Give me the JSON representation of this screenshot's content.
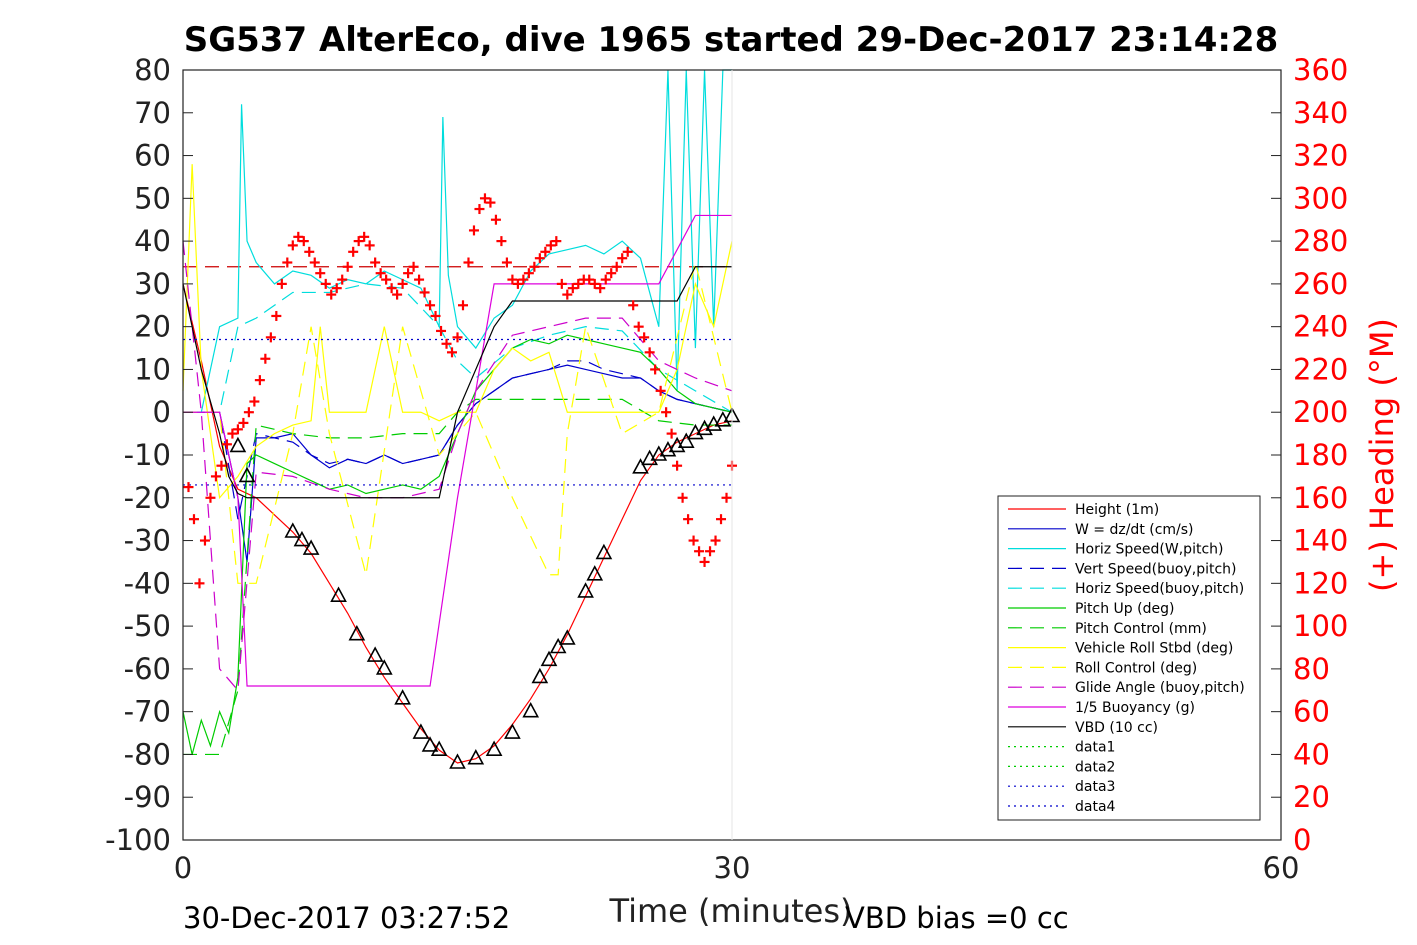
{
  "chart_data": {
    "type": "line",
    "title": "SG537 AlterEco, dive 1965 started 29-Dec-2017 23:14:28",
    "xlabel": "Time (minutes)",
    "ylabel": "",
    "y2label": "(+) Heading (°M)",
    "xlim": [
      0,
      60
    ],
    "ylim": [
      -100,
      80
    ],
    "y2lim": [
      0,
      360
    ],
    "x_ticks": [
      "0",
      "30",
      "60"
    ],
    "y_ticks": [
      "80",
      "70",
      "60",
      "50",
      "40",
      "30",
      "20",
      "10",
      "0",
      "-10",
      "-20",
      "-30",
      "-40",
      "-50",
      "-60",
      "-70",
      "-80",
      "-90",
      "-100"
    ],
    "y2_ticks": [
      "360",
      "340",
      "320",
      "300",
      "280",
      "260",
      "240",
      "220",
      "200",
      "180",
      "160",
      "140",
      "120",
      "100",
      "80",
      "60",
      "40",
      "20",
      "0"
    ],
    "grid": false,
    "legend_position": "bottom-right",
    "footer_left": "30-Dec-2017 03:27:52",
    "footer_right": "VBD bias =0 cc",
    "series": [
      {
        "name": "Height (1m)",
        "color": "#ff0000",
        "style": "solid",
        "x": [
          0,
          1,
          2,
          3,
          4,
          5,
          6,
          7,
          8,
          9,
          10,
          11,
          12,
          13,
          14,
          15,
          16,
          17,
          18,
          19,
          20,
          21,
          22,
          23,
          24,
          25,
          26,
          27,
          28,
          29,
          30
        ],
        "y": [
          30,
          12,
          -8,
          -18,
          -20,
          -24,
          -28,
          -33,
          -40,
          -47,
          -55,
          -62,
          -68,
          -74,
          -79,
          -82,
          -81,
          -78,
          -73,
          -67,
          -60,
          -52,
          -43,
          -34,
          -25,
          -16,
          -10,
          -7,
          -5,
          -3,
          -2
        ]
      },
      {
        "name": "W = dz/dt (cm/s)",
        "color": "#0000cc",
        "style": "solid",
        "x": [
          0,
          2,
          3,
          3.5,
          4,
          5,
          6,
          7,
          8,
          9,
          10,
          11,
          12,
          13,
          14,
          15,
          16,
          17,
          18,
          19,
          20,
          21,
          22,
          23,
          24,
          25,
          26,
          27,
          28,
          29,
          30
        ],
        "y": [
          0,
          0,
          -20,
          -35,
          -6,
          -6,
          -5,
          -10,
          -13,
          -11,
          -12,
          -10,
          -12,
          -11,
          -10,
          -3,
          2,
          5,
          8,
          9,
          10,
          11,
          10,
          9,
          8,
          8,
          5,
          3,
          2,
          1,
          0
        ]
      },
      {
        "name": "Horiz Speed(W,pitch)",
        "color": "#00dddd",
        "style": "solid",
        "x": [
          0,
          1,
          2,
          3,
          3.2,
          3.5,
          4,
          5,
          6,
          7,
          8,
          9,
          10,
          11,
          12,
          13,
          14,
          14.2,
          14.5,
          15,
          16,
          17,
          18,
          19,
          20,
          21,
          22,
          23,
          24,
          25,
          26,
          26.5,
          27,
          27.5,
          28,
          28.5,
          29,
          29.5,
          30
        ],
        "y": [
          0,
          0,
          20,
          22,
          72,
          40,
          35,
          30,
          33,
          32,
          29,
          31,
          30,
          33,
          31,
          29,
          20,
          69,
          32,
          20,
          15,
          22,
          25,
          33,
          37,
          38,
          39,
          37,
          40,
          36,
          20,
          80,
          5,
          80,
          15,
          80,
          20,
          80,
          80
        ]
      },
      {
        "name": "Vert Speed(buoy,pitch)",
        "color": "#0000cc",
        "style": "dashed",
        "x": [
          0,
          2,
          3,
          4,
          5,
          6,
          7,
          8,
          9,
          10,
          11,
          12,
          13,
          14,
          15,
          16,
          17,
          18,
          19,
          20,
          21,
          22,
          23,
          24,
          25,
          26,
          27,
          28,
          29,
          30
        ],
        "y": [
          0,
          0,
          -25,
          -5,
          -6,
          -7,
          -10,
          -12,
          -11,
          -12,
          -10,
          -12,
          -11,
          -10,
          -3,
          2,
          5,
          8,
          9,
          10,
          12,
          12,
          10,
          9,
          8,
          5,
          3,
          2,
          1,
          0
        ]
      },
      {
        "name": "Horiz Speed(buoy,pitch)",
        "color": "#00dddd",
        "style": "dashed",
        "x": [
          0,
          2,
          3,
          4,
          6,
          8,
          10,
          12,
          14,
          15,
          16,
          18,
          20,
          22,
          24,
          26,
          28,
          30
        ],
        "y": [
          0,
          0,
          20,
          22,
          28,
          28,
          30,
          29,
          20,
          12,
          8,
          15,
          18,
          20,
          19,
          10,
          5,
          0
        ]
      },
      {
        "name": "Pitch Up (deg)",
        "color": "#00cc00",
        "style": "solid",
        "x": [
          0,
          0.5,
          1,
          1.5,
          2,
          2.5,
          3,
          3.5,
          4,
          5,
          6,
          7,
          8,
          9,
          10,
          11,
          12,
          13,
          14,
          15,
          16,
          17,
          18,
          19,
          20,
          21,
          22,
          23,
          24,
          25,
          26,
          27,
          28,
          29,
          30
        ],
        "y": [
          -70,
          -80,
          -72,
          -78,
          -70,
          -75,
          -62,
          -12,
          -10,
          -12,
          -14,
          -16,
          -18,
          -17,
          -19,
          -18,
          -17,
          -18,
          -15,
          -5,
          5,
          10,
          15,
          17,
          16,
          18,
          17,
          16,
          15,
          14,
          10,
          5,
          2,
          1,
          0
        ]
      },
      {
        "name": "Pitch Control (mm)",
        "color": "#00cc00",
        "style": "dashed",
        "x": [
          0,
          2,
          3,
          4,
          6,
          8,
          10,
          12,
          14,
          15,
          16,
          18,
          20,
          22,
          24,
          26,
          28,
          30
        ],
        "y": [
          -80,
          -80,
          -65,
          -3,
          -5,
          -6,
          -6,
          -5,
          -5,
          0,
          3,
          3,
          3,
          3,
          3,
          -2,
          -3,
          -3
        ]
      },
      {
        "name": "Vehicle Roll Stbd (deg)",
        "color": "#ffff00",
        "style": "solid",
        "x": [
          0,
          0.5,
          1,
          1.5,
          2,
          3,
          4,
          5,
          6,
          7,
          7.5,
          8,
          9,
          10,
          11,
          12,
          13,
          14,
          15,
          16,
          17,
          18,
          19,
          20,
          21,
          22,
          23,
          24,
          25,
          26,
          27,
          28,
          29,
          30
        ],
        "y": [
          5,
          58,
          10,
          -5,
          -20,
          -15,
          -8,
          -5,
          -3,
          -2,
          20,
          0,
          0,
          0,
          20,
          0,
          0,
          -2,
          0,
          0,
          10,
          15,
          12,
          14,
          0,
          0,
          0,
          0,
          0,
          0,
          10,
          30,
          20,
          40
        ]
      },
      {
        "name": "Roll Control (deg)",
        "color": "#ffff00",
        "style": "dashed",
        "x": [
          0,
          2,
          3,
          4,
          6,
          7,
          8,
          10,
          12,
          14,
          16,
          18,
          20,
          20.5,
          21,
          22,
          24,
          26,
          28,
          30
        ],
        "y": [
          0,
          0,
          -40,
          -40,
          -5,
          20,
          -5,
          -38,
          20,
          -10,
          0,
          -20,
          -38,
          -38,
          -5,
          20,
          -5,
          0,
          35,
          0
        ]
      },
      {
        "name": "Glide Angle (buoy,pitch)",
        "color": "#cc00cc",
        "style": "dashed",
        "x": [
          0,
          1,
          2,
          3,
          4,
          6,
          8,
          10,
          12,
          14,
          15,
          16,
          18,
          20,
          22,
          24,
          26,
          28,
          30
        ],
        "y": [
          40,
          0,
          -60,
          -65,
          -14,
          -15,
          -18,
          -20,
          -20,
          -18,
          -5,
          5,
          18,
          20,
          22,
          22,
          12,
          8,
          5
        ]
      },
      {
        "name": "1/5 Buoyancy (g)",
        "color": "#dd00dd",
        "style": "solid",
        "x": [
          0,
          2,
          3,
          3.5,
          4,
          13.5,
          15,
          17,
          19,
          25,
          26,
          27,
          28,
          29,
          30
        ],
        "y": [
          0,
          0,
          -20,
          -64,
          -64,
          -64,
          -20,
          30,
          30,
          30,
          30,
          38,
          46,
          46,
          46
        ]
      },
      {
        "name": "VBD (10 cc)",
        "color": "#000000",
        "style": "solid",
        "x": [
          0,
          1,
          2,
          2.5,
          3,
          3.5,
          8,
          13,
          14,
          15,
          17,
          18,
          20,
          25,
          26,
          27,
          28,
          29,
          30
        ],
        "y": [
          30,
          10,
          -5,
          -15,
          -19,
          -20,
          -20,
          -20,
          -20,
          0,
          20,
          26,
          26,
          26,
          26,
          26,
          34,
          34,
          34
        ]
      },
      {
        "name": "data1",
        "color": "#00cc00",
        "style": "dotted",
        "x": [],
        "y": []
      },
      {
        "name": "data2",
        "color": "#00cc00",
        "style": "dotted",
        "x": [],
        "y": []
      },
      {
        "name": "data3",
        "color": "#0000cc",
        "style": "dotted",
        "x": [
          0,
          30
        ],
        "y": [
          17,
          17
        ]
      },
      {
        "name": "data4",
        "color": "#0000cc",
        "style": "dotted",
        "x": [
          0,
          30
        ],
        "y": [
          -17,
          -17
        ]
      }
    ],
    "reference_lines": [
      {
        "color": "#cc0000",
        "style": "dashed",
        "x": [
          0,
          30
        ],
        "y": [
          34,
          34
        ]
      }
    ],
    "heading_points": {
      "color": "#ff0000",
      "x": [
        0.3,
        0.6,
        0.9,
        1.2,
        1.5,
        1.8,
        2.1,
        2.4,
        2.7,
        3.0,
        3.3,
        3.6,
        3.9,
        4.2,
        4.5,
        4.8,
        5.1,
        5.4,
        5.7,
        6.0,
        6.3,
        6.6,
        6.9,
        7.2,
        7.5,
        7.8,
        8.1,
        8.4,
        8.7,
        9.0,
        9.3,
        9.6,
        9.9,
        10.2,
        10.5,
        10.8,
        11.1,
        11.4,
        11.7,
        12.0,
        12.3,
        12.6,
        12.9,
        13.2,
        13.5,
        13.8,
        14.1,
        14.4,
        14.7,
        15.0,
        15.3,
        15.6,
        15.9,
        16.2,
        16.5,
        16.8,
        17.1,
        17.4,
        17.7,
        18.0,
        18.3,
        18.6,
        18.9,
        19.2,
        19.5,
        19.8,
        20.1,
        20.4,
        20.7,
        21.0,
        21.3,
        21.6,
        21.9,
        22.2,
        22.5,
        22.8,
        23.1,
        23.4,
        23.7,
        24.0,
        24.3,
        24.6,
        24.9,
        25.2,
        25.5,
        25.8,
        26.1,
        26.4,
        26.7,
        27.0,
        27.3,
        27.6,
        27.9,
        28.2,
        28.5,
        28.8,
        29.1,
        29.4,
        29.7,
        30.0
      ],
      "y": [
        165,
        150,
        120,
        140,
        160,
        170,
        175,
        185,
        190,
        192,
        195,
        200,
        205,
        215,
        225,
        235,
        245,
        260,
        270,
        278,
        282,
        280,
        275,
        270,
        265,
        260,
        255,
        258,
        262,
        268,
        275,
        280,
        282,
        278,
        270,
        265,
        262,
        258,
        255,
        260,
        265,
        268,
        262,
        256,
        250,
        245,
        238,
        232,
        228,
        235,
        250,
        270,
        285,
        295,
        300,
        298,
        290,
        280,
        270,
        262,
        260,
        262,
        265,
        268,
        272,
        275,
        278,
        280,
        260,
        255,
        258,
        260,
        262,
        262,
        260,
        258,
        262,
        265,
        268,
        272,
        275,
        250,
        240,
        235,
        228,
        220,
        210,
        200,
        190,
        175,
        160,
        150,
        140,
        135,
        130,
        135,
        140,
        150,
        160,
        175
      ]
    },
    "depth_markers": {
      "color": "#000000",
      "x": [
        3,
        3.5,
        6,
        6.5,
        7,
        8.5,
        9.5,
        10.5,
        11,
        12,
        13,
        13.5,
        14,
        15,
        16,
        17,
        18,
        19,
        19.5,
        20,
        20.5,
        21,
        22,
        22.5,
        23,
        25,
        25.5,
        26,
        26.5,
        27,
        27.5,
        28,
        28.5,
        29,
        29.5,
        30
      ],
      "y": [
        -8,
        -15,
        -28,
        -30,
        -32,
        -43,
        -52,
        -57,
        -60,
        -67,
        -75,
        -78,
        -79,
        -82,
        -81,
        -79,
        -75,
        -70,
        -62,
        -58,
        -55,
        -53,
        -42,
        -38,
        -33,
        -13,
        -11,
        -10,
        -9,
        -8,
        -7,
        -5,
        -4,
        -3,
        -2,
        -1
      ]
    }
  }
}
